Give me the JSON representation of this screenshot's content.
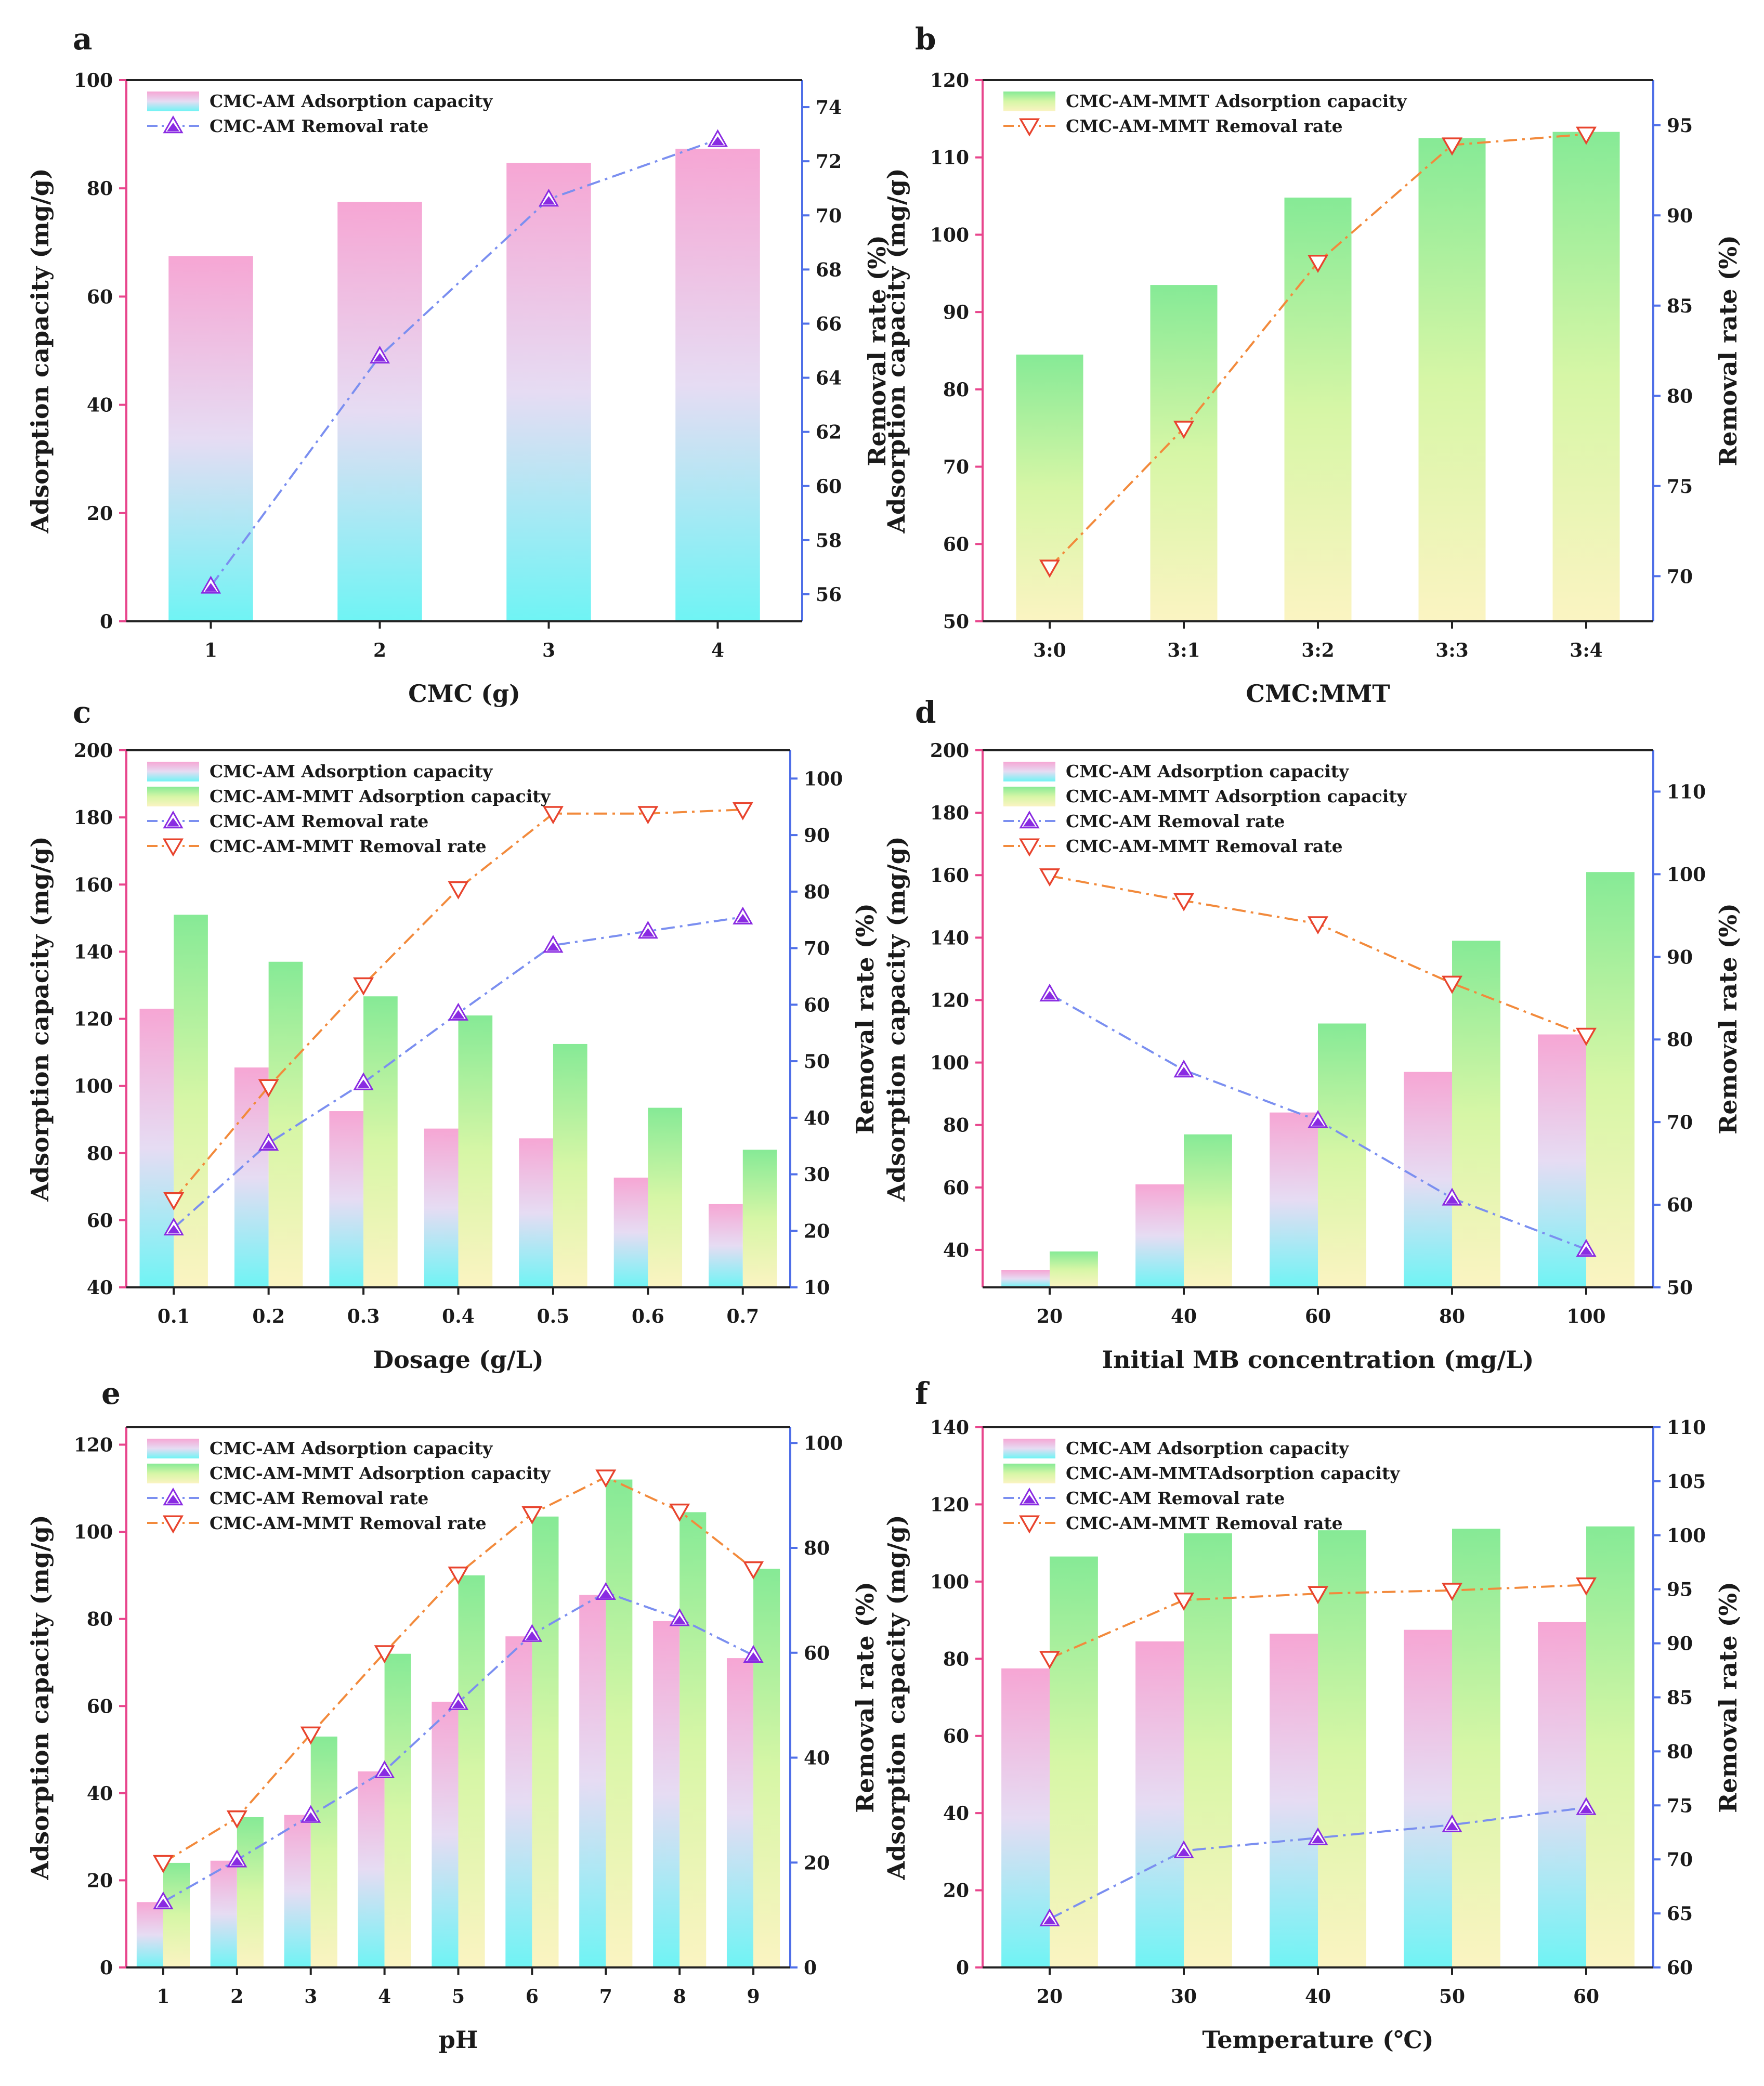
{
  "chart_data": [
    {
      "panel": "a",
      "type": "bar+line",
      "xlabel": "CMC (g)",
      "ylabel": "Adsorption capacity (mg/g)",
      "y2label": "Removal rate (%)",
      "categories": [
        "1",
        "2",
        "3",
        "4"
      ],
      "ylim": [
        0,
        100
      ],
      "yticks": [
        0,
        20,
        40,
        60,
        80,
        100
      ],
      "y2lim": [
        55,
        75
      ],
      "y2ticks": [
        56,
        58,
        60,
        62,
        64,
        66,
        68,
        70,
        72,
        74
      ],
      "left_color": "#e8458c",
      "right_color": "#4f6fe8",
      "bars": [
        {
          "name": "CMC-AM Adsorption capacity",
          "gradient": "pink",
          "values": [
            67.5,
            77.5,
            84.7,
            87.3
          ]
        }
      ],
      "lines": [
        {
          "name": "CMC-AM Removal rate",
          "color": "#7b8ff0",
          "marker": "purple-triangle-up",
          "values": [
            56.3,
            64.8,
            70.6,
            72.8
          ]
        }
      ],
      "legend": [
        {
          "label": "CMC-AM Adsorption capacity",
          "kind": "bar",
          "gradient": "pink"
        },
        {
          "label": "CMC-AM Removal rate",
          "kind": "line",
          "color": "#7b8ff0",
          "marker": "purple-triangle-up"
        }
      ]
    },
    {
      "panel": "b",
      "type": "bar+line",
      "xlabel": "CMC:MMT",
      "ylabel": "Adsorption capacity (mg/g)",
      "y2label": "Removal rate (%)",
      "categories": [
        "3:0",
        "3:1",
        "3:2",
        "3:3",
        "3:4"
      ],
      "ylim": [
        50,
        120
      ],
      "yticks": [
        50,
        60,
        70,
        80,
        90,
        100,
        110,
        120
      ],
      "y2lim": [
        67.5,
        97.5
      ],
      "y2ticks": [
        70,
        75,
        80,
        85,
        90,
        95
      ],
      "left_color": "#e8458c",
      "right_color": "#4f6fe8",
      "bars": [
        {
          "name": "CMC-AM-MMT Adsorption capacity",
          "gradient": "green",
          "values": [
            84.5,
            93.5,
            104.8,
            112.5,
            113.3
          ]
        }
      ],
      "lines": [
        {
          "name": "CMC-AM-MMT Removal rate",
          "color": "#f28a3c",
          "marker": "red-triangle-down",
          "values": [
            70.5,
            78.2,
            87.4,
            93.9,
            94.5
          ]
        }
      ],
      "legend": [
        {
          "label": "CMC-AM-MMT Adsorption capacity",
          "kind": "bar",
          "gradient": "green"
        },
        {
          "label": "CMC-AM-MMT Removal rate",
          "kind": "line",
          "color": "#f28a3c",
          "marker": "red-triangle-down"
        }
      ]
    },
    {
      "panel": "c",
      "type": "bar+line",
      "xlabel": "Dosage (g/L)",
      "ylabel": "Adsorption capacity (mg/g)",
      "y2label": "Removal rate (%)",
      "categories": [
        "0.1",
        "0.2",
        "0.3",
        "0.4",
        "0.5",
        "0.6",
        "0.7"
      ],
      "ylim": [
        40,
        200
      ],
      "yticks": [
        40,
        60,
        80,
        100,
        120,
        140,
        160,
        180,
        200
      ],
      "y2lim": [
        10,
        105
      ],
      "y2ticks": [
        10,
        20,
        30,
        40,
        50,
        60,
        70,
        80,
        90,
        100
      ],
      "left_color": "#e8458c",
      "right_color": "#4f6fe8",
      "bars": [
        {
          "name": "CMC-AM Adsorption capacity",
          "gradient": "pink",
          "values": [
            123,
            105.5,
            92.5,
            87.3,
            84.4,
            72.7,
            64.8
          ]
        },
        {
          "name": "CMC-AM-MMT Adsorption capacity",
          "gradient": "green",
          "values": [
            151,
            137,
            126.7,
            121,
            112.5,
            93.5,
            81
          ]
        }
      ],
      "lines": [
        {
          "name": "CMC-AM Removal rate",
          "color": "#7b8ff0",
          "marker": "purple-triangle-up",
          "values": [
            20.5,
            35.5,
            46.2,
            58.5,
            70.5,
            73.0,
            75.5
          ]
        },
        {
          "name": "CMC-AM-MMT Removal rate",
          "color": "#f28a3c",
          "marker": "red-triangle-down",
          "values": [
            25.5,
            45.5,
            63.5,
            80.5,
            93.8,
            93.8,
            94.5
          ]
        }
      ],
      "legend": [
        {
          "label": "CMC-AM Adsorption capacity",
          "kind": "bar",
          "gradient": "pink"
        },
        {
          "label": "CMC-AM-MMT Adsorption capacity",
          "kind": "bar",
          "gradient": "green"
        },
        {
          "label": "CMC-AM Removal rate",
          "kind": "line",
          "color": "#7b8ff0",
          "marker": "purple-triangle-up"
        },
        {
          "label": "CMC-AM-MMT Removal rate",
          "kind": "line",
          "color": "#f28a3c",
          "marker": "red-triangle-down"
        }
      ]
    },
    {
      "panel": "d",
      "type": "bar+line",
      "xlabel": "Initial MB concentration (mg/L)",
      "ylabel": "Adsorption capacity (mg/g)",
      "y2label": "Removal rate (%)",
      "categories": [
        "20",
        "40",
        "60",
        "80",
        "100"
      ],
      "ylim": [
        28,
        200
      ],
      "yticks": [
        40,
        60,
        80,
        100,
        120,
        140,
        160,
        180,
        200
      ],
      "y2lim": [
        50,
        115
      ],
      "y2ticks": [
        50,
        60,
        70,
        80,
        90,
        100,
        110
      ],
      "left_color": "#e8458c",
      "right_color": "#4f6fe8",
      "bars": [
        {
          "name": "CMC-AM Adsorption capacity",
          "gradient": "pink",
          "values": [
            33.5,
            61,
            84,
            97,
            109
          ]
        },
        {
          "name": "CMC-AM-MMT Adsorption capacity",
          "gradient": "green",
          "values": [
            39.5,
            77,
            112.5,
            139,
            161
          ]
        }
      ],
      "lines": [
        {
          "name": "CMC-AM Removal rate",
          "color": "#7b8ff0",
          "marker": "purple-triangle-up",
          "values": [
            85.5,
            76.3,
            70.2,
            60.8,
            54.6
          ]
        },
        {
          "name": "CMC-AM-MMT Removal rate",
          "color": "#f28a3c",
          "marker": "red-triangle-down",
          "values": [
            99.8,
            96.8,
            94,
            86.8,
            80.5
          ]
        }
      ],
      "legend": [
        {
          "label": "CMC-AM Adsorption capacity",
          "kind": "bar",
          "gradient": "pink"
        },
        {
          "label": "CMC-AM-MMT Adsorption capacity",
          "kind": "bar",
          "gradient": "green"
        },
        {
          "label": "CMC-AM Removal rate",
          "kind": "line",
          "color": "#7b8ff0",
          "marker": "purple-triangle-up"
        },
        {
          "label": "CMC-AM-MMT Removal rate",
          "kind": "line",
          "color": "#f28a3c",
          "marker": "red-triangle-down"
        }
      ]
    },
    {
      "panel": "e",
      "type": "bar+line",
      "xlabel": "pH",
      "ylabel": "Adsorption capacity (mg/g)",
      "y2label": "Removal rate (%)",
      "categories": [
        "1",
        "2",
        "3",
        "4",
        "5",
        "6",
        "7",
        "8",
        "9"
      ],
      "ylim": [
        0,
        124
      ],
      "yticks": [
        0,
        20,
        40,
        60,
        80,
        100,
        120
      ],
      "y2lim": [
        0,
        103
      ],
      "y2ticks": [
        0,
        20,
        40,
        60,
        80,
        100
      ],
      "left_color": "#e8458c",
      "right_color": "#4f6fe8",
      "bars": [
        {
          "name": "CMC-AM Adsorption capacity",
          "gradient": "pink",
          "values": [
            15,
            24.5,
            35,
            45,
            61,
            76,
            85.5,
            79.5,
            71
          ]
        },
        {
          "name": "CMC-AM-MMT Adsorption capacity",
          "gradient": "green",
          "values": [
            24,
            34.5,
            53,
            72,
            90,
            103.5,
            112,
            104.5,
            91.5
          ]
        }
      ],
      "lines": [
        {
          "name": "CMC-AM Removal rate",
          "color": "#7b8ff0",
          "marker": "purple-triangle-up",
          "values": [
            12.5,
            20.5,
            29,
            37.5,
            50.5,
            63.5,
            71.5,
            66.5,
            59.5
          ]
        },
        {
          "name": "CMC-AM-MMT Removal rate",
          "color": "#f28a3c",
          "marker": "red-triangle-down",
          "values": [
            20,
            28.5,
            44.5,
            60,
            75,
            86.5,
            93.5,
            87,
            76
          ]
        }
      ],
      "legend": [
        {
          "label": "CMC-AM Adsorption capacity",
          "kind": "bar",
          "gradient": "pink"
        },
        {
          "label": "CMC-AM-MMT Adsorption capacity",
          "kind": "bar",
          "gradient": "green"
        },
        {
          "label": "CMC-AM Removal rate",
          "kind": "line",
          "color": "#7b8ff0",
          "marker": "purple-triangle-up"
        },
        {
          "label": "CMC-AM-MMT Removal rate",
          "kind": "line",
          "color": "#f28a3c",
          "marker": "red-triangle-down"
        }
      ]
    },
    {
      "panel": "f",
      "type": "bar+line",
      "xlabel": "Temperature (℃)",
      "ylabel": "Adsorption capacity (mg/g)",
      "y2label": "Removal rate (%)",
      "categories": [
        "20",
        "30",
        "40",
        "50",
        "60"
      ],
      "ylim": [
        0,
        140
      ],
      "yticks": [
        0,
        20,
        40,
        60,
        80,
        100,
        120,
        140
      ],
      "y2lim": [
        60,
        110
      ],
      "y2ticks": [
        60,
        65,
        70,
        75,
        80,
        85,
        90,
        95,
        100,
        105,
        110
      ],
      "left_color": "#e8458c",
      "right_color": "#4f6fe8",
      "bars": [
        {
          "name": "CMC-AM Adsorption capacity",
          "gradient": "pink",
          "values": [
            77.5,
            84.5,
            86.5,
            87.5,
            89.5
          ]
        },
        {
          "name": "CMC-AM-MMTAdsorption capacity",
          "gradient": "green",
          "values": [
            106.5,
            112.5,
            113.3,
            113.7,
            114.3
          ]
        }
      ],
      "lines": [
        {
          "name": "CMC-AM Removal rate",
          "color": "#7b8ff0",
          "marker": "purple-triangle-up",
          "values": [
            64.5,
            70.8,
            72,
            73.2,
            74.8
          ]
        },
        {
          "name": "CMC-AM-MMT Removal rate",
          "color": "#f28a3c",
          "marker": "red-triangle-down",
          "values": [
            88.6,
            94,
            94.6,
            94.9,
            95.4
          ]
        }
      ],
      "legend": [
        {
          "label": "CMC-AM Adsorption capacity",
          "kind": "bar",
          "gradient": "pink"
        },
        {
          "label": "CMC-AM-MMTAdsorption capacity",
          "kind": "bar",
          "gradient": "green"
        },
        {
          "label": "CMC-AM Removal rate",
          "kind": "line",
          "color": "#7b8ff0",
          "marker": "purple-triangle-up"
        },
        {
          "label": "CMC-AM-MMT Removal rate",
          "kind": "line",
          "color": "#f28a3c",
          "marker": "red-triangle-down"
        }
      ]
    }
  ]
}
